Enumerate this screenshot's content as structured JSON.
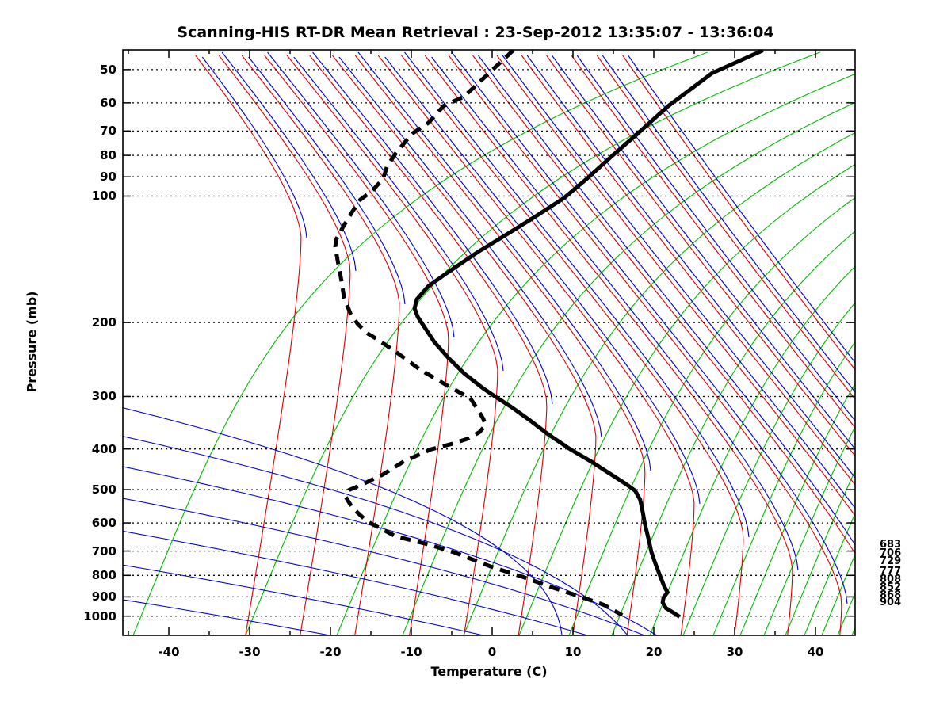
{
  "title": "Scanning-HIS RT-DR Mean Retrieval : 23-Sep-2012 13:35:07 - 13:36:04",
  "axes": {
    "x": {
      "label": "Temperature (C)",
      "tick_labels": [
        -40,
        -30,
        -20,
        -10,
        0,
        10,
        20,
        30,
        40
      ],
      "minor_step": 5,
      "range": [
        -45.7,
        44.9
      ]
    },
    "y": {
      "label": "Pressure (mb)",
      "tick_labels": [
        50,
        60,
        70,
        80,
        90,
        100,
        200,
        300,
        400,
        500,
        600,
        700,
        800,
        900,
        1000
      ],
      "scale": "log",
      "range": [
        44.7,
        1110
      ]
    }
  },
  "right_labels": [
    {
      "text": "683",
      "y": 687
    },
    {
      "text": "706",
      "y": 698
    },
    {
      "text": "729",
      "y": 708
    },
    {
      "text": "777",
      "y": 721
    },
    {
      "text": "808",
      "y": 731
    },
    {
      "text": "852",
      "y": 741
    },
    {
      "text": "868",
      "y": 751
    },
    {
      "text": "904",
      "y": 760
    }
  ],
  "colors": {
    "isotherm_green": "#00BB00",
    "adiabat_red": "#DD0000",
    "adiabat_blue": "#0000CC",
    "pressure_grid": "#000000",
    "profile_black": "#000000",
    "frame": "#000000"
  },
  "chart_data": {
    "type": "line",
    "title": "Scanning-HIS RT-DR Mean Retrieval : 23-Sep-2012 13:35:07 - 13:36:04",
    "xlabel": "Temperature (C)",
    "ylabel": "Pressure (mb)",
    "x_range": [
      -45.7,
      44.9
    ],
    "y_range_mb": [
      44.7,
      1110
    ],
    "y_scale": "log-pressure",
    "grid": "dotted horizontal isobars at labeled pressures",
    "note": "skewed-coordinate sounding; temperatures are plotted chart x-positions",
    "series": [
      {
        "name": "temperature",
        "style": "solid black thick",
        "points_p_t": [
          [
            45,
            33.5
          ],
          [
            51,
            27.2
          ],
          [
            61,
            21.8
          ],
          [
            71,
            18.0
          ],
          [
            81,
            14.6
          ],
          [
            91,
            11.7
          ],
          [
            101,
            8.9
          ],
          [
            112,
            5.3
          ],
          [
            123,
            1.9
          ],
          [
            136,
            -1.8
          ],
          [
            152,
            -5.5
          ],
          [
            164,
            -7.9
          ],
          [
            176,
            -9.3
          ],
          [
            185,
            -9.6
          ],
          [
            194,
            -9.2
          ],
          [
            202,
            -8.6
          ],
          [
            222,
            -7.2
          ],
          [
            243,
            -5.4
          ],
          [
            265,
            -3.4
          ],
          [
            287,
            -1.1
          ],
          [
            303,
            0.7
          ],
          [
            318,
            2.4
          ],
          [
            340,
            4.5
          ],
          [
            370,
            7.0
          ],
          [
            401,
            9.7
          ],
          [
            428,
            12.2
          ],
          [
            461,
            14.8
          ],
          [
            484,
            16.5
          ],
          [
            503,
            17.7
          ],
          [
            528,
            18.3
          ],
          [
            561,
            18.6
          ],
          [
            604,
            18.9
          ],
          [
            650,
            19.3
          ],
          [
            703,
            19.7
          ],
          [
            750,
            20.2
          ],
          [
            805,
            20.8
          ],
          [
            851,
            21.3
          ],
          [
            878,
            21.7
          ],
          [
            904,
            21.2
          ],
          [
            928,
            21.1
          ],
          [
            957,
            21.5
          ],
          [
            978,
            22.3
          ],
          [
            1004,
            23.2
          ]
        ]
      },
      {
        "name": "dewpoint",
        "style": "dashed black thick",
        "points_p_t": [
          [
            45,
            2.6
          ],
          [
            51,
            -0.4
          ],
          [
            58,
            -3.5
          ],
          [
            61,
            -6.0
          ],
          [
            67,
            -7.9
          ],
          [
            71,
            -9.9
          ],
          [
            79,
            -11.9
          ],
          [
            85,
            -13.0
          ],
          [
            91,
            -13.5
          ],
          [
            97,
            -14.8
          ],
          [
            102,
            -16.3
          ],
          [
            109,
            -17.3
          ],
          [
            119,
            -18.5
          ],
          [
            127,
            -19.3
          ],
          [
            132,
            -19.4
          ],
          [
            143,
            -19.1
          ],
          [
            157,
            -18.7
          ],
          [
            175,
            -18.3
          ],
          [
            191,
            -17.5
          ],
          [
            202,
            -16.6
          ],
          [
            213,
            -15.3
          ],
          [
            220,
            -14.1
          ],
          [
            235,
            -11.9
          ],
          [
            259,
            -8.9
          ],
          [
            283,
            -5.5
          ],
          [
            303,
            -2.7
          ],
          [
            322,
            -1.8
          ],
          [
            339,
            -1.1
          ],
          [
            351,
            -0.8
          ],
          [
            365,
            -1.6
          ],
          [
            378,
            -3.0
          ],
          [
            389,
            -5.0
          ],
          [
            401,
            -7.6
          ],
          [
            428,
            -10.9
          ],
          [
            461,
            -13.6
          ],
          [
            488,
            -16.3
          ],
          [
            501,
            -17.7
          ],
          [
            521,
            -18.1
          ],
          [
            552,
            -17.3
          ],
          [
            587,
            -15.8
          ],
          [
            600,
            -15.1
          ],
          [
            646,
            -11.9
          ],
          [
            675,
            -7.9
          ],
          [
            705,
            -4.7
          ],
          [
            763,
            -0.1
          ],
          [
            807,
            3.8
          ],
          [
            858,
            7.7
          ],
          [
            896,
            10.7
          ],
          [
            940,
            13.8
          ],
          [
            995,
            16.1
          ]
        ]
      }
    ],
    "background_lines": {
      "green": "skewed isotherm / mixing-ratio fan, up-right slanted",
      "red": "saturation adiabat arcs, near-vertical lower right curving left aloft",
      "blue": "dry adiabat lines, shallow down-right slope, paired with red aloft"
    }
  }
}
